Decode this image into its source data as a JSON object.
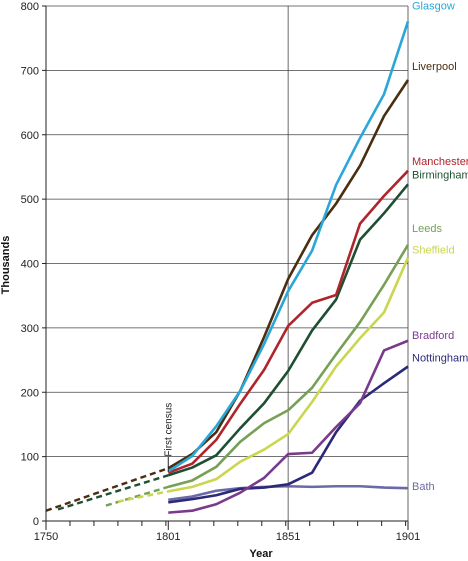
{
  "chart_data": {
    "type": "line",
    "xlabel": "Year",
    "ylabel": "Thousands",
    "xlim": [
      1750,
      1901
    ],
    "ylim": [
      0,
      800
    ],
    "x_ticks": [
      1750,
      1801,
      1851,
      1901
    ],
    "y_ticks": [
      0,
      100,
      200,
      300,
      400,
      500,
      600,
      700,
      800
    ],
    "grid": "horizontal",
    "annotations": [
      {
        "text": "First census",
        "x": 1801
      }
    ],
    "series": [
      {
        "name": "Glasgow",
        "color": "#2aa7d8",
        "x": [
          1801,
          1811,
          1821,
          1831,
          1841,
          1851,
          1861,
          1871,
          1881,
          1891,
          1901
        ],
        "y": [
          77,
          101,
          147,
          202,
          275,
          357,
          420,
          522,
          595,
          663,
          776
        ]
      },
      {
        "name": "Liverpool",
        "color": "#4a2e10",
        "x": [
          1801,
          1811,
          1821,
          1831,
          1841,
          1851,
          1861,
          1871,
          1881,
          1891,
          1901
        ],
        "y": [
          82,
          104,
          138,
          202,
          286,
          376,
          444,
          493,
          552,
          629,
          685
        ]
      },
      {
        "name": "Manchester",
        "color": "#b0242c",
        "x": [
          1801,
          1811,
          1821,
          1831,
          1841,
          1851,
          1861,
          1871,
          1881,
          1891,
          1901
        ],
        "y": [
          75,
          89,
          126,
          182,
          235,
          303,
          339,
          351,
          462,
          505,
          544
        ]
      },
      {
        "name": "Birmingham",
        "color": "#1e4f32",
        "x": [
          1801,
          1811,
          1821,
          1831,
          1841,
          1851,
          1861,
          1871,
          1881,
          1891,
          1901
        ],
        "y": [
          71,
          83,
          102,
          144,
          183,
          233,
          296,
          344,
          437,
          478,
          523
        ]
      },
      {
        "name": "Leeds",
        "color": "#76a055",
        "x": [
          1801,
          1811,
          1821,
          1831,
          1841,
          1851,
          1861,
          1871,
          1881,
          1891,
          1901
        ],
        "y": [
          53,
          63,
          84,
          123,
          152,
          172,
          207,
          259,
          309,
          367,
          429
        ]
      },
      {
        "name": "Sheffield",
        "color": "#c9d74f",
        "x": [
          1801,
          1811,
          1821,
          1831,
          1841,
          1851,
          1861,
          1871,
          1881,
          1891,
          1901
        ],
        "y": [
          46,
          53,
          65,
          92,
          111,
          135,
          185,
          240,
          284,
          324,
          409
        ]
      },
      {
        "name": "Bradford",
        "color": "#7a3a8c",
        "x": [
          1801,
          1811,
          1821,
          1831,
          1841,
          1851,
          1861,
          1871,
          1881,
          1891,
          1901
        ],
        "y": [
          13,
          16,
          26,
          44,
          67,
          104,
          106,
          146,
          183,
          265,
          280
        ]
      },
      {
        "name": "Nottingham",
        "color": "#2c2a78",
        "x": [
          1801,
          1811,
          1821,
          1831,
          1841,
          1851,
          1861,
          1871,
          1881,
          1891,
          1901
        ],
        "y": [
          29,
          34,
          40,
          50,
          52,
          57,
          75,
          138,
          187,
          214,
          240
        ]
      },
      {
        "name": "Bath",
        "color": "#6b6aa8",
        "x": [
          1801,
          1811,
          1821,
          1831,
          1841,
          1851,
          1861,
          1871,
          1881,
          1891,
          1901
        ],
        "y": [
          33,
          38,
          47,
          51,
          53,
          54,
          53,
          54,
          54,
          52,
          51
        ]
      }
    ],
    "pre_census_estimates": [
      {
        "color": "#4a2e10",
        "x": [
          1750,
          1801
        ],
        "y": [
          16,
          82
        ]
      },
      {
        "color": "#1e4f32",
        "x": [
          1755,
          1801
        ],
        "y": [
          18,
          71
        ]
      },
      {
        "color": "#76a055",
        "x": [
          1775,
          1801
        ],
        "y": [
          24,
          53
        ]
      },
      {
        "color": "#c9d74f",
        "x": [
          1780,
          1801
        ],
        "y": [
          30,
          46
        ]
      }
    ]
  }
}
